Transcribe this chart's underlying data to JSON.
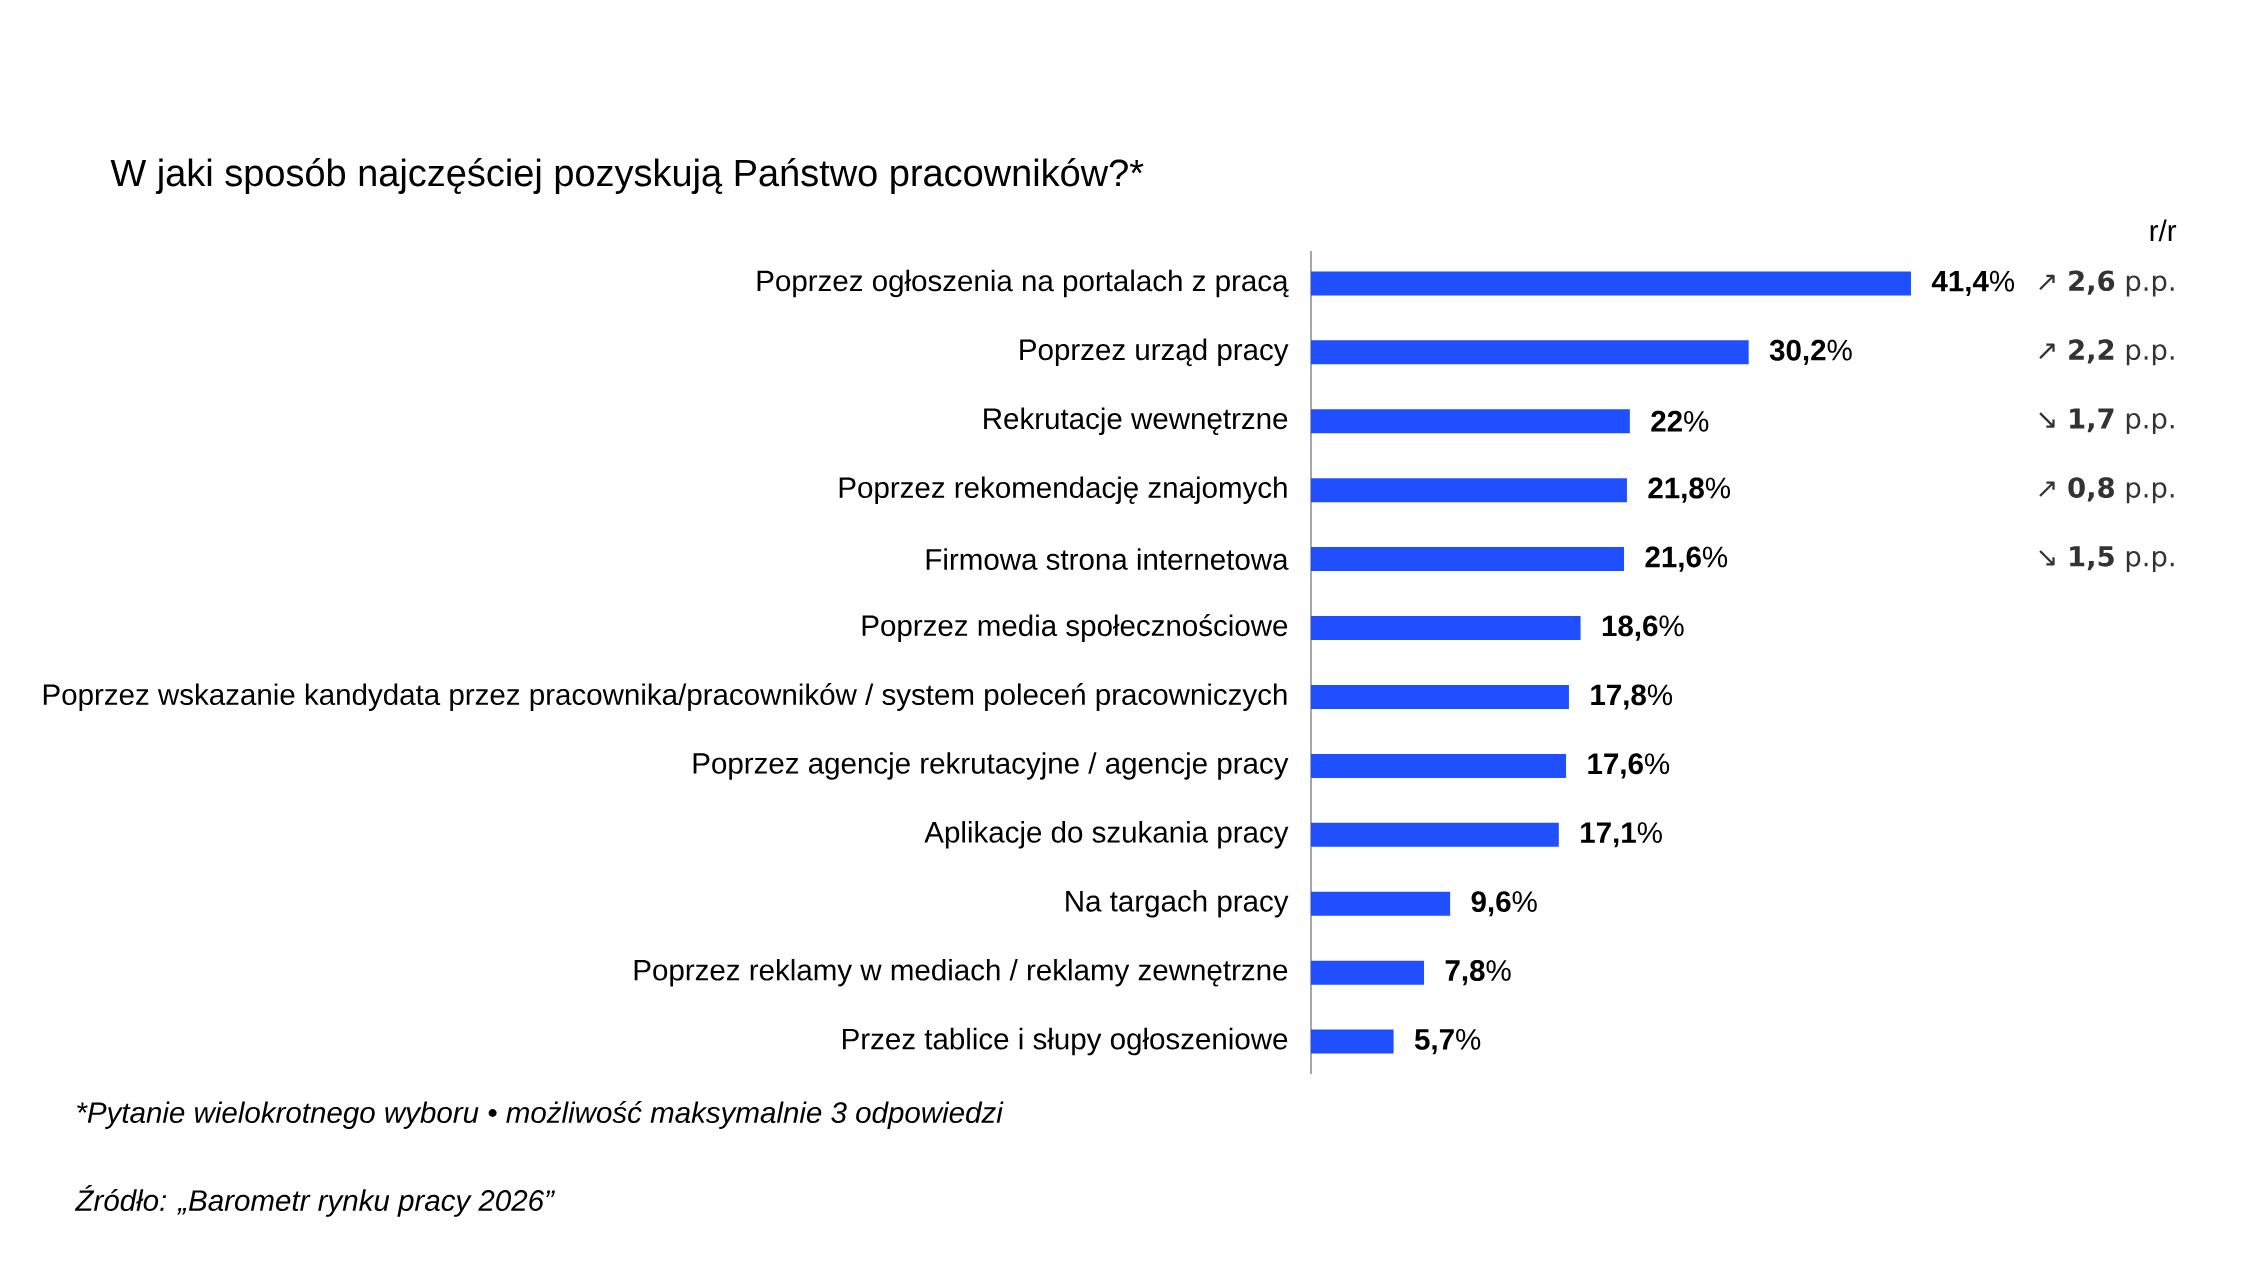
{
  "chart_data": {
    "type": "bar",
    "orientation": "horizontal",
    "title": "W jaki sposób najczęściej pozyskują Państwo pracowników?*",
    "categories": [
      "Poprzez ogłoszenia na portalach z pracą",
      "Poprzez urząd pracy",
      "Rekrutacje wewnętrzne",
      "Poprzez rekomendację znajomych",
      "Firmowa strona internetowa",
      "Poprzez media społecznościowe",
      "Poprzez wskazanie kandydata przez pracownika/pracowników / system poleceń pracowniczych",
      "Poprzez agencje rekrutacyjne / agencje pracy",
      "Aplikacje do szukania pracy",
      "Na targach pracy",
      "Poprzez reklamy w mediach / reklamy zewnętrzne",
      "Przez tablice i słupy ogłoszeniowe"
    ],
    "values": [
      41.4,
      30.2,
      22,
      21.8,
      21.6,
      18.6,
      17.8,
      17.6,
      17.1,
      9.6,
      7.8,
      5.7
    ],
    "value_labels": [
      "**41,4**%",
      "**30,2**%",
      "**22**%",
      "**21,8**%",
      "**21,6**%",
      "**18,6**%",
      "**17,8**%",
      "**17,6**%",
      "**17,1**%",
      "**9,6**%",
      "**7,8**%",
      "**5,7**%"
    ],
    "color": "#1f4fff",
    "annotations": [
      "r/r",
      "↗ **2,6** p.p.",
      "↗ **2,2** p.p.",
      "↘ **1,7** p.p.",
      "↗ **0,8** p.p.",
      "↘ **1,5** p.p.",
      "*Pytanie wielokrotnego wyboru • możliwość maksymalnie 3 odpowiedzi",
      "Źródło: „Barometr rynku pracy 2026”"
    ]
  }
}
